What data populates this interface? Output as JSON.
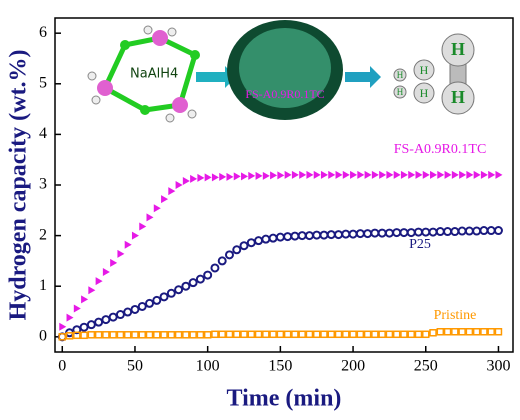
{
  "chart_data": {
    "type": "scatter",
    "xlabel": "Time (min)",
    "ylabel": "Hydrogen capacity (wt.%)",
    "xlim": [
      -5,
      310
    ],
    "ylim": [
      -0.3,
      6.3
    ],
    "xticks": [
      0,
      50,
      100,
      150,
      200,
      250,
      300
    ],
    "yticks": [
      0,
      1,
      2,
      3,
      4,
      5,
      6
    ],
    "x": [
      0,
      5,
      10,
      15,
      20,
      25,
      30,
      35,
      40,
      45,
      50,
      55,
      60,
      65,
      70,
      75,
      80,
      85,
      90,
      95,
      100,
      105,
      110,
      115,
      120,
      125,
      130,
      135,
      140,
      145,
      150,
      155,
      160,
      165,
      170,
      175,
      180,
      185,
      190,
      195,
      200,
      205,
      210,
      215,
      220,
      225,
      230,
      235,
      240,
      245,
      250,
      255,
      260,
      265,
      270,
      275,
      280,
      285,
      290,
      295,
      300
    ],
    "series": [
      {
        "name": "FS-A0.9R0.1TC",
        "color": "#e619e6",
        "marker": "triangle",
        "values": [
          0.2,
          0.38,
          0.56,
          0.74,
          0.92,
          1.1,
          1.28,
          1.46,
          1.64,
          1.82,
          2.0,
          2.18,
          2.36,
          2.54,
          2.72,
          2.88,
          3.0,
          3.08,
          3.12,
          3.14,
          3.15,
          3.15,
          3.16,
          3.16,
          3.17,
          3.17,
          3.18,
          3.18,
          3.18,
          3.19,
          3.19,
          3.2,
          3.2,
          3.2,
          3.2,
          3.2,
          3.2,
          3.2,
          3.2,
          3.2,
          3.2,
          3.2,
          3.2,
          3.2,
          3.2,
          3.2,
          3.2,
          3.2,
          3.2,
          3.2,
          3.2,
          3.2,
          3.2,
          3.2,
          3.2,
          3.2,
          3.2,
          3.2,
          3.2,
          3.2,
          3.2
        ]
      },
      {
        "name": "P25",
        "color": "#1a1a80",
        "marker": "circle",
        "values": [
          0.0,
          0.08,
          0.14,
          0.19,
          0.24,
          0.29,
          0.34,
          0.39,
          0.44,
          0.49,
          0.54,
          0.6,
          0.66,
          0.72,
          0.79,
          0.86,
          0.93,
          1.0,
          1.07,
          1.14,
          1.22,
          1.36,
          1.5,
          1.62,
          1.72,
          1.8,
          1.86,
          1.9,
          1.93,
          1.95,
          1.97,
          1.98,
          1.99,
          2.0,
          2.0,
          2.01,
          2.01,
          2.02,
          2.02,
          2.03,
          2.03,
          2.04,
          2.04,
          2.05,
          2.05,
          2.05,
          2.06,
          2.06,
          2.06,
          2.07,
          2.07,
          2.07,
          2.08,
          2.08,
          2.08,
          2.09,
          2.09,
          2.09,
          2.1,
          2.1,
          2.1
        ]
      },
      {
        "name": "Pristine",
        "color": "#ff9900",
        "marker": "square",
        "values": [
          0,
          0.02,
          0.03,
          0.03,
          0.04,
          0.04,
          0.04,
          0.04,
          0.04,
          0.04,
          0.04,
          0.04,
          0.04,
          0.04,
          0.04,
          0.04,
          0.04,
          0.04,
          0.04,
          0.04,
          0.04,
          0.05,
          0.05,
          0.05,
          0.05,
          0.05,
          0.05,
          0.05,
          0.05,
          0.05,
          0.05,
          0.05,
          0.05,
          0.05,
          0.05,
          0.05,
          0.05,
          0.05,
          0.05,
          0.05,
          0.05,
          0.05,
          0.05,
          0.05,
          0.05,
          0.05,
          0.05,
          0.05,
          0.05,
          0.05,
          0.05,
          0.08,
          0.1,
          0.1,
          0.1,
          0.1,
          0.1,
          0.1,
          0.1,
          0.1,
          0.1
        ]
      }
    ],
    "inset": {
      "labels": [
        "NaAlH4",
        "FS-A0.9R0.1TC",
        "H",
        "H",
        "H",
        "H",
        "H",
        "H"
      ]
    }
  }
}
